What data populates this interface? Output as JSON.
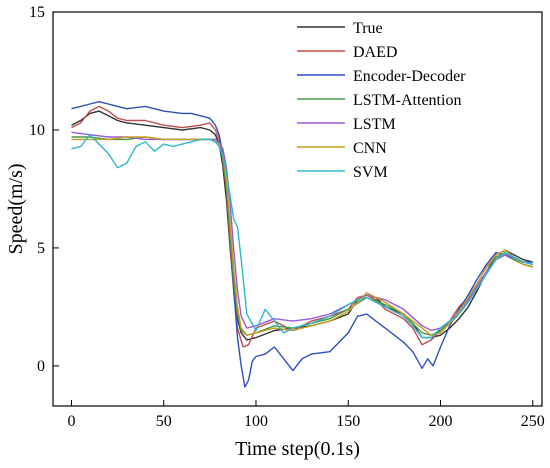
{
  "chart_data": {
    "type": "line",
    "title": "",
    "xlabel": "Time step(0.1s)",
    "ylabel": "Speed(m/s)",
    "xlim": [
      -10,
      255
    ],
    "ylim": [
      -1.7,
      15
    ],
    "xticks": [
      0,
      50,
      100,
      150,
      200,
      250
    ],
    "yticks": [
      0,
      5,
      10,
      15
    ],
    "legend_position": "top-right",
    "grid": false,
    "series": [
      {
        "name": "True",
        "color": "#333333",
        "x": [
          0,
          5,
          10,
          15,
          20,
          25,
          30,
          40,
          50,
          60,
          70,
          75,
          78,
          80,
          82,
          84,
          86,
          88,
          90,
          92,
          95,
          100,
          110,
          120,
          130,
          140,
          150,
          155,
          160,
          165,
          170,
          180,
          185,
          190,
          195,
          200,
          205,
          210,
          215,
          220,
          225,
          230,
          235,
          240,
          245,
          250
        ],
        "y": [
          10.2,
          10.4,
          10.7,
          10.8,
          10.6,
          10.4,
          10.3,
          10.2,
          10.1,
          10.0,
          10.1,
          10.0,
          9.8,
          9.4,
          8.5,
          7.0,
          5.0,
          3.2,
          2.0,
          1.4,
          1.1,
          1.2,
          1.5,
          1.6,
          1.7,
          1.9,
          2.2,
          2.8,
          3.0,
          2.9,
          2.5,
          2.2,
          1.8,
          1.2,
          1.2,
          1.3,
          1.6,
          2.0,
          2.5,
          3.2,
          4.0,
          4.7,
          4.9,
          4.7,
          4.5,
          4.4
        ]
      },
      {
        "name": "DAED",
        "color": "#c0504d",
        "x": [
          0,
          5,
          10,
          15,
          20,
          25,
          30,
          40,
          50,
          60,
          70,
          75,
          78,
          80,
          82,
          84,
          86,
          88,
          90,
          93,
          96,
          100,
          110,
          120,
          130,
          140,
          150,
          155,
          160,
          165,
          170,
          180,
          185,
          190,
          195,
          200,
          205,
          210,
          215,
          220,
          225,
          230,
          235,
          240,
          245,
          250
        ],
        "y": [
          10.1,
          10.3,
          10.8,
          11.0,
          10.8,
          10.5,
          10.4,
          10.4,
          10.2,
          10.1,
          10.2,
          10.3,
          10.0,
          9.6,
          8.8,
          7.4,
          5.2,
          3.1,
          1.6,
          0.8,
          0.9,
          1.6,
          1.9,
          1.5,
          1.9,
          2.1,
          2.4,
          2.9,
          3.0,
          2.8,
          2.4,
          2.0,
          1.6,
          0.9,
          1.1,
          1.5,
          1.9,
          2.5,
          2.9,
          3.5,
          4.2,
          4.6,
          4.8,
          4.5,
          4.3,
          4.2
        ]
      },
      {
        "name": "Encoder-Decoder",
        "color": "#2e4fbf",
        "x": [
          0,
          5,
          10,
          15,
          20,
          25,
          30,
          40,
          50,
          60,
          65,
          70,
          75,
          78,
          80,
          82,
          84,
          86,
          88,
          90,
          92,
          94,
          96,
          98,
          100,
          105,
          110,
          115,
          120,
          125,
          130,
          140,
          150,
          155,
          160,
          165,
          170,
          180,
          185,
          190,
          193,
          196,
          200,
          205,
          210,
          215,
          220,
          225,
          230,
          235,
          240,
          245,
          250
        ],
        "y": [
          10.9,
          11.0,
          11.1,
          11.2,
          11.1,
          11.0,
          10.9,
          11.0,
          10.8,
          10.7,
          10.7,
          10.6,
          10.5,
          10.2,
          9.8,
          9.0,
          7.5,
          5.5,
          3.2,
          1.2,
          0.0,
          -0.9,
          -0.6,
          0.2,
          0.4,
          0.5,
          0.8,
          0.3,
          -0.2,
          0.3,
          0.5,
          0.6,
          1.4,
          2.1,
          2.2,
          1.9,
          1.6,
          1.0,
          0.6,
          -0.1,
          0.3,
          0.0,
          0.8,
          1.7,
          2.4,
          3.0,
          3.7,
          4.3,
          4.8,
          4.7,
          4.5,
          4.4,
          4.4
        ]
      },
      {
        "name": "LSTM-Attention",
        "color": "#4a9a4a",
        "x": [
          0,
          10,
          20,
          30,
          40,
          50,
          60,
          70,
          75,
          78,
          80,
          82,
          84,
          86,
          88,
          90,
          92,
          95,
          100,
          110,
          120,
          130,
          140,
          150,
          160,
          170,
          180,
          190,
          195,
          200,
          205,
          210,
          215,
          220,
          225,
          230,
          235,
          240,
          245,
          250
        ],
        "y": [
          9.7,
          9.7,
          9.6,
          9.6,
          9.7,
          9.6,
          9.6,
          9.6,
          9.6,
          9.6,
          9.4,
          8.8,
          7.6,
          5.6,
          3.6,
          2.2,
          1.5,
          1.3,
          1.4,
          1.7,
          1.6,
          1.8,
          2.0,
          2.4,
          2.9,
          2.6,
          2.2,
          1.4,
          1.3,
          1.5,
          1.8,
          2.2,
          2.7,
          3.3,
          4.0,
          4.6,
          4.8,
          4.5,
          4.3,
          4.2
        ]
      },
      {
        "name": "LSTM",
        "color": "#9b59d6",
        "x": [
          0,
          10,
          20,
          30,
          40,
          50,
          60,
          70,
          75,
          78,
          80,
          82,
          84,
          86,
          88,
          90,
          92,
          95,
          100,
          110,
          120,
          130,
          140,
          150,
          160,
          170,
          180,
          190,
          195,
          200,
          205,
          210,
          215,
          220,
          225,
          230,
          235,
          240,
          245,
          250
        ],
        "y": [
          9.9,
          9.8,
          9.7,
          9.7,
          9.6,
          9.6,
          9.6,
          9.6,
          9.6,
          9.6,
          9.5,
          9.2,
          8.4,
          6.9,
          4.9,
          3.2,
          2.1,
          1.6,
          1.7,
          2.0,
          1.9,
          2.0,
          2.2,
          2.6,
          3.0,
          2.8,
          2.4,
          1.7,
          1.5,
          1.6,
          1.9,
          2.3,
          2.8,
          3.4,
          4.0,
          4.5,
          4.7,
          4.6,
          4.4,
          4.3
        ]
      },
      {
        "name": "CNN",
        "color": "#c8a020",
        "x": [
          0,
          10,
          20,
          30,
          40,
          50,
          60,
          70,
          75,
          78,
          80,
          82,
          84,
          86,
          88,
          90,
          92,
          95,
          100,
          110,
          120,
          130,
          140,
          150,
          160,
          170,
          180,
          190,
          195,
          200,
          205,
          210,
          215,
          220,
          225,
          230,
          235,
          240,
          245,
          250
        ],
        "y": [
          9.6,
          9.6,
          9.6,
          9.7,
          9.7,
          9.6,
          9.6,
          9.6,
          9.6,
          9.5,
          9.4,
          8.9,
          7.9,
          6.1,
          4.1,
          2.5,
          1.6,
          1.3,
          1.4,
          1.6,
          1.5,
          1.7,
          1.9,
          2.3,
          3.1,
          2.7,
          2.2,
          1.6,
          1.3,
          1.4,
          1.8,
          2.3,
          2.9,
          3.5,
          4.2,
          4.7,
          4.9,
          4.6,
          4.3,
          4.2
        ]
      },
      {
        "name": "SVM",
        "color": "#2fb8cc",
        "x": [
          0,
          5,
          10,
          15,
          20,
          25,
          30,
          35,
          40,
          45,
          50,
          55,
          60,
          65,
          70,
          75,
          78,
          80,
          82,
          84,
          86,
          88,
          90,
          92,
          95,
          100,
          105,
          110,
          115,
          120,
          130,
          140,
          150,
          155,
          160,
          165,
          170,
          180,
          185,
          190,
          195,
          200,
          205,
          210,
          215,
          220,
          225,
          230,
          235,
          240,
          245,
          250
        ],
        "y": [
          9.2,
          9.3,
          9.8,
          9.4,
          9.0,
          8.4,
          8.6,
          9.3,
          9.5,
          9.1,
          9.4,
          9.3,
          9.4,
          9.5,
          9.6,
          9.6,
          9.5,
          9.3,
          8.9,
          8.2,
          7.2,
          6.2,
          5.9,
          4.5,
          2.2,
          1.5,
          2.4,
          1.9,
          1.4,
          1.6,
          1.8,
          2.1,
          2.6,
          2.8,
          2.9,
          2.7,
          2.5,
          2.1,
          1.7,
          1.2,
          1.2,
          1.6,
          1.9,
          2.2,
          2.7,
          3.3,
          3.9,
          4.5,
          4.8,
          4.6,
          4.4,
          4.3
        ]
      }
    ]
  }
}
